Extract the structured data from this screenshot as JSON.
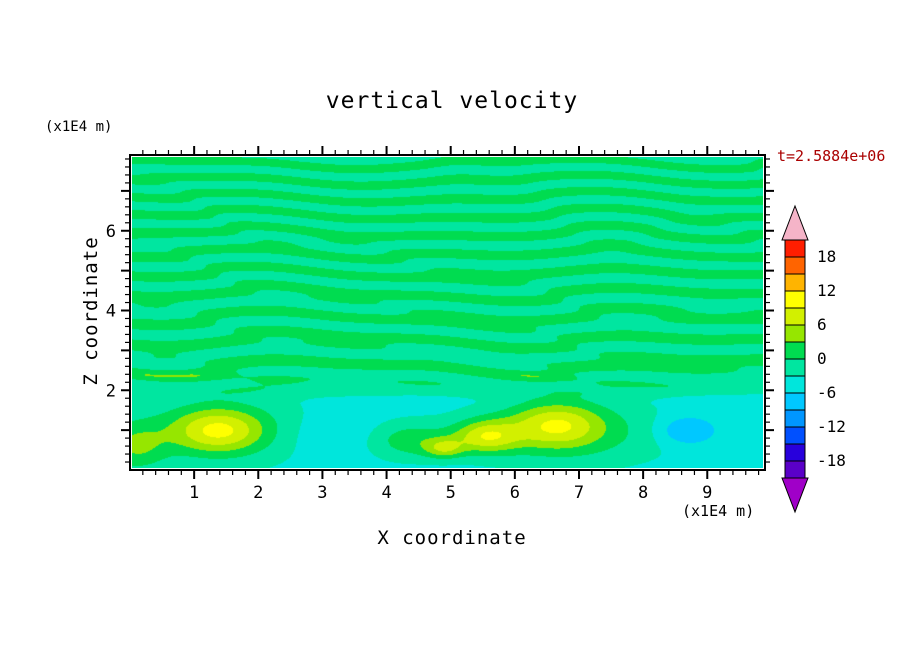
{
  "figure": {
    "title": "vertical velocity",
    "time_annotation": "t=2.5884e+06",
    "x_axis": {
      "title": "X coordinate",
      "unit_label": "(x1E4 m)",
      "tick_labels": [
        1,
        2,
        3,
        4,
        5,
        6,
        7,
        8,
        9
      ],
      "range": [
        0,
        9.9
      ],
      "minor_step": 0.2
    },
    "y_axis": {
      "title": "Z coordinate",
      "unit_label": "(x1E4 m)",
      "tick_labels": [
        2,
        4,
        6
      ],
      "major_ticks": [
        1,
        2,
        3,
        4,
        5,
        6,
        7
      ],
      "range": [
        0,
        7.9
      ],
      "minor_step": 0.2
    },
    "colors": {
      "time_label": "#aa0000",
      "frame": "#000000",
      "background": "#ffffff"
    }
  },
  "chart_data": {
    "type": "heatmap",
    "subtype": "filled_contour",
    "title": "vertical velocity",
    "xlabel": "X coordinate (x1E4 m)",
    "ylabel": "Z coordinate (x1E4 m)",
    "time_annotation": "t=2.5884e+06",
    "x_range": [
      0,
      9.9
    ],
    "z_range": [
      0,
      7.9
    ],
    "grid": false,
    "levels": {
      "min": -21,
      "max": 21,
      "step": 3
    },
    "colorbar": {
      "position": "right",
      "tick_labels": [
        18,
        12,
        6,
        0,
        -6,
        -12,
        -18
      ],
      "palette_low_to_high": [
        "#5a00c8",
        "#2800dc",
        "#0050ff",
        "#0096ff",
        "#00c8ff",
        "#00e6dc",
        "#00e6a0",
        "#00dc50",
        "#96e600",
        "#d2f000",
        "#ffff00",
        "#ffb400",
        "#ff6400",
        "#ff1e00"
      ],
      "under_arrow_color": "#a000c8",
      "over_arrow_color": "#f5b4c8"
    },
    "field_model": {
      "description": "Mostly near-zero wavy striped field (values alternating between -3..0 and 0..3 bands) above z=2; below z=2 a background of -6..-3 (cyan) with localized updraft/downdraft cells.",
      "stripe_amp": 2.8,
      "stripe_env": {
        "z_start": 1.7,
        "z_full": 2.4
      },
      "base_value": -4.3,
      "base_env": {
        "z_full": 1.6,
        "z_end": 2.35
      },
      "waves": {
        "c0": 6.5,
        "c1": 0.55,
        "a1": 1.4,
        "k2": 1.1,
        "k3": 0.5,
        "a3": 0.9,
        "k7": 2.3,
        "k4": 16.0,
        "k5": 1.3,
        "a2": 1.6,
        "k6": 0.72,
        "k8": 0.8,
        "w1": 0.62,
        "w2": 0.38
      },
      "features": [
        {
          "x": 1.35,
          "z": 0.95,
          "amp": 10.5,
          "sx": 0.52,
          "sz": 0.4
        },
        {
          "x": 1.4,
          "z": 1.0,
          "amp": 4.0,
          "sx": 1.05,
          "sz": 0.7
        },
        {
          "x": 0.05,
          "z": 0.55,
          "amp": 6.5,
          "sx": 0.35,
          "sz": 0.45
        },
        {
          "x": 3.15,
          "z": 0.85,
          "amp": -1.9,
          "sx": 0.6,
          "sz": 0.38
        },
        {
          "x": 4.35,
          "z": 0.7,
          "amp": 6.0,
          "sx": 0.45,
          "sz": 0.33
        },
        {
          "x": 4.9,
          "z": 0.5,
          "amp": 7.5,
          "sx": 0.22,
          "sz": 0.18
        },
        {
          "x": 5.55,
          "z": 0.8,
          "amp": 10.5,
          "sx": 0.36,
          "sz": 0.3
        },
        {
          "x": 6.65,
          "z": 1.1,
          "amp": 9.5,
          "sx": 0.52,
          "sz": 0.42
        },
        {
          "x": 6.9,
          "z": 0.9,
          "amp": 5.0,
          "sx": 1.1,
          "sz": 0.6
        },
        {
          "x": 8.7,
          "z": 0.95,
          "amp": -5.8,
          "sx": 0.32,
          "sz": 0.26
        }
      ]
    }
  }
}
